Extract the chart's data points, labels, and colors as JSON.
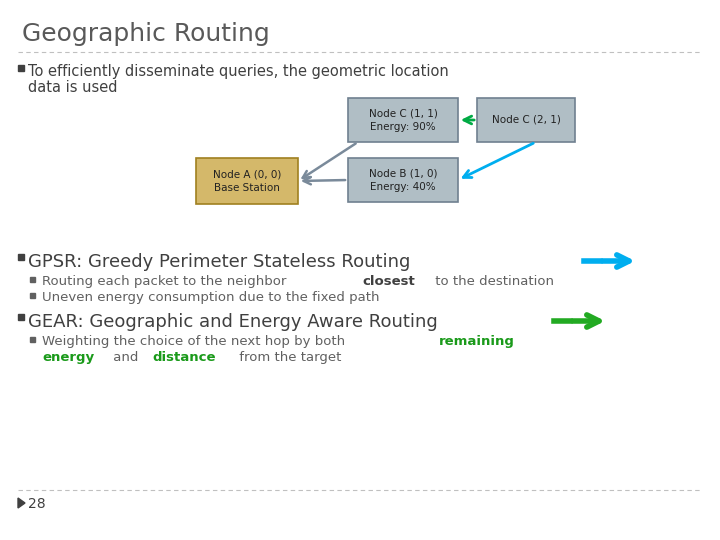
{
  "title": "Geographic Routing",
  "title_color": "#595959",
  "bg_color": "#ffffff",
  "slide_number": "28",
  "node_a_label": "Node A (0, 0)\nBase Station",
  "node_b_label": "Node B (1, 0)\nEnergy: 40%",
  "node_c1_label": "Node C (1, 1)\nEnergy: 90%",
  "node_c2_label": "Node C (2, 1)",
  "node_a_facecolor": "#d4b86a",
  "node_a_edgecolor": "#a08020",
  "node_b_facecolor": "#b0bec5",
  "node_b_edgecolor": "#708090",
  "node_c1_facecolor": "#b0bec5",
  "node_c1_edgecolor": "#708090",
  "node_c2_facecolor": "#b0bec5",
  "node_c2_edgecolor": "#708090",
  "arrow_gray": "#7a8a9a",
  "arrow_blue": "#00AEEF",
  "arrow_green": "#00AA44",
  "text_dark": "#404040",
  "text_sub": "#606060",
  "gpsr_arrow_color": "#00AEEF",
  "gear_arrow_color": "#22aa22",
  "bold_color": "#404040",
  "green_bold_color": "#1a9a1a"
}
